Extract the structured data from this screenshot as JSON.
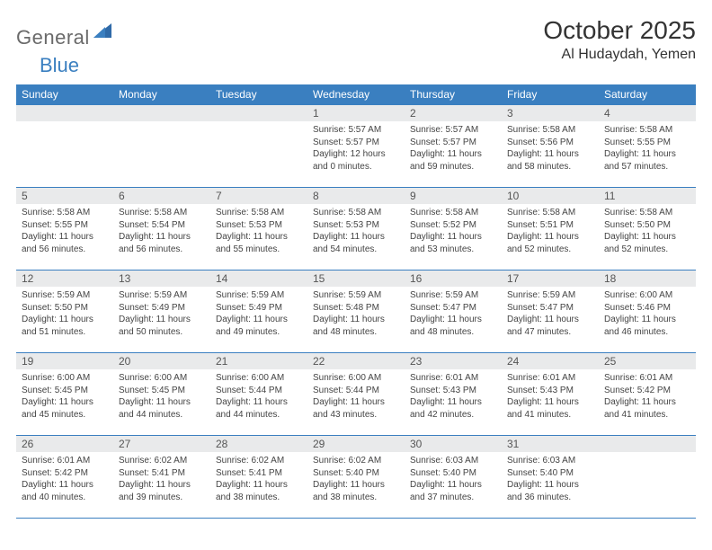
{
  "brand": {
    "name_a": "General",
    "name_b": "Blue"
  },
  "title": {
    "month": "October 2025",
    "location": "Al Hudaydah, Yemen"
  },
  "colors": {
    "accent": "#3a7fc0",
    "header_bg": "#3a7fc0",
    "row_band": "#e9eaeb"
  },
  "weekdays": [
    "Sunday",
    "Monday",
    "Tuesday",
    "Wednesday",
    "Thursday",
    "Friday",
    "Saturday"
  ],
  "weeks": [
    [
      null,
      null,
      null,
      {
        "n": "1",
        "rise": "5:57 AM",
        "set": "5:57 PM",
        "day_a": "12 hours",
        "day_b": "and 0 minutes."
      },
      {
        "n": "2",
        "rise": "5:57 AM",
        "set": "5:57 PM",
        "day_a": "11 hours",
        "day_b": "and 59 minutes."
      },
      {
        "n": "3",
        "rise": "5:58 AM",
        "set": "5:56 PM",
        "day_a": "11 hours",
        "day_b": "and 58 minutes."
      },
      {
        "n": "4",
        "rise": "5:58 AM",
        "set": "5:55 PM",
        "day_a": "11 hours",
        "day_b": "and 57 minutes."
      }
    ],
    [
      {
        "n": "5",
        "rise": "5:58 AM",
        "set": "5:55 PM",
        "day_a": "11 hours",
        "day_b": "and 56 minutes."
      },
      {
        "n": "6",
        "rise": "5:58 AM",
        "set": "5:54 PM",
        "day_a": "11 hours",
        "day_b": "and 56 minutes."
      },
      {
        "n": "7",
        "rise": "5:58 AM",
        "set": "5:53 PM",
        "day_a": "11 hours",
        "day_b": "and 55 minutes."
      },
      {
        "n": "8",
        "rise": "5:58 AM",
        "set": "5:53 PM",
        "day_a": "11 hours",
        "day_b": "and 54 minutes."
      },
      {
        "n": "9",
        "rise": "5:58 AM",
        "set": "5:52 PM",
        "day_a": "11 hours",
        "day_b": "and 53 minutes."
      },
      {
        "n": "10",
        "rise": "5:58 AM",
        "set": "5:51 PM",
        "day_a": "11 hours",
        "day_b": "and 52 minutes."
      },
      {
        "n": "11",
        "rise": "5:58 AM",
        "set": "5:50 PM",
        "day_a": "11 hours",
        "day_b": "and 52 minutes."
      }
    ],
    [
      {
        "n": "12",
        "rise": "5:59 AM",
        "set": "5:50 PM",
        "day_a": "11 hours",
        "day_b": "and 51 minutes."
      },
      {
        "n": "13",
        "rise": "5:59 AM",
        "set": "5:49 PM",
        "day_a": "11 hours",
        "day_b": "and 50 minutes."
      },
      {
        "n": "14",
        "rise": "5:59 AM",
        "set": "5:49 PM",
        "day_a": "11 hours",
        "day_b": "and 49 minutes."
      },
      {
        "n": "15",
        "rise": "5:59 AM",
        "set": "5:48 PM",
        "day_a": "11 hours",
        "day_b": "and 48 minutes."
      },
      {
        "n": "16",
        "rise": "5:59 AM",
        "set": "5:47 PM",
        "day_a": "11 hours",
        "day_b": "and 48 minutes."
      },
      {
        "n": "17",
        "rise": "5:59 AM",
        "set": "5:47 PM",
        "day_a": "11 hours",
        "day_b": "and 47 minutes."
      },
      {
        "n": "18",
        "rise": "6:00 AM",
        "set": "5:46 PM",
        "day_a": "11 hours",
        "day_b": "and 46 minutes."
      }
    ],
    [
      {
        "n": "19",
        "rise": "6:00 AM",
        "set": "5:45 PM",
        "day_a": "11 hours",
        "day_b": "and 45 minutes."
      },
      {
        "n": "20",
        "rise": "6:00 AM",
        "set": "5:45 PM",
        "day_a": "11 hours",
        "day_b": "and 44 minutes."
      },
      {
        "n": "21",
        "rise": "6:00 AM",
        "set": "5:44 PM",
        "day_a": "11 hours",
        "day_b": "and 44 minutes."
      },
      {
        "n": "22",
        "rise": "6:00 AM",
        "set": "5:44 PM",
        "day_a": "11 hours",
        "day_b": "and 43 minutes."
      },
      {
        "n": "23",
        "rise": "6:01 AM",
        "set": "5:43 PM",
        "day_a": "11 hours",
        "day_b": "and 42 minutes."
      },
      {
        "n": "24",
        "rise": "6:01 AM",
        "set": "5:43 PM",
        "day_a": "11 hours",
        "day_b": "and 41 minutes."
      },
      {
        "n": "25",
        "rise": "6:01 AM",
        "set": "5:42 PM",
        "day_a": "11 hours",
        "day_b": "and 41 minutes."
      }
    ],
    [
      {
        "n": "26",
        "rise": "6:01 AM",
        "set": "5:42 PM",
        "day_a": "11 hours",
        "day_b": "and 40 minutes."
      },
      {
        "n": "27",
        "rise": "6:02 AM",
        "set": "5:41 PM",
        "day_a": "11 hours",
        "day_b": "and 39 minutes."
      },
      {
        "n": "28",
        "rise": "6:02 AM",
        "set": "5:41 PM",
        "day_a": "11 hours",
        "day_b": "and 38 minutes."
      },
      {
        "n": "29",
        "rise": "6:02 AM",
        "set": "5:40 PM",
        "day_a": "11 hours",
        "day_b": "and 38 minutes."
      },
      {
        "n": "30",
        "rise": "6:03 AM",
        "set": "5:40 PM",
        "day_a": "11 hours",
        "day_b": "and 37 minutes."
      },
      {
        "n": "31",
        "rise": "6:03 AM",
        "set": "5:40 PM",
        "day_a": "11 hours",
        "day_b": "and 36 minutes."
      },
      null
    ]
  ],
  "labels": {
    "sunrise": "Sunrise:",
    "sunset": "Sunset:",
    "daylight": "Daylight:"
  }
}
